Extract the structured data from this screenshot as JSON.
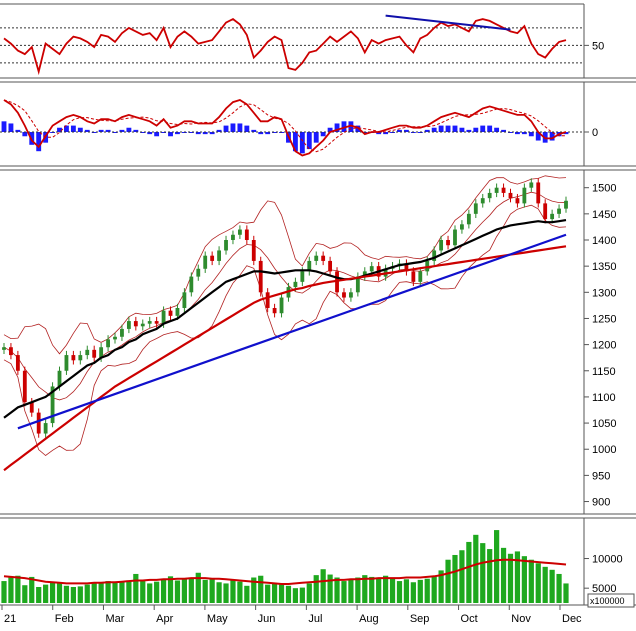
{
  "chart_data": [
    {
      "type": "line",
      "panel": "rsi",
      "y_ticks": [
        50
      ],
      "ylim": [
        15,
        95
      ],
      "reference_lines": [
        30,
        50,
        70
      ],
      "series": [
        {
          "values": [
            58,
            52,
            44,
            40,
            48,
            20,
            52,
            46,
            40,
            52,
            60,
            58,
            54,
            48,
            62,
            60,
            54,
            64,
            70,
            66,
            62,
            64,
            56,
            70,
            48,
            60,
            66,
            60,
            52,
            54,
            56,
            66,
            76,
            80,
            74,
            62,
            36,
            44,
            54,
            60,
            56,
            24,
            22,
            30,
            42,
            44,
            52,
            60,
            54,
            60,
            66,
            58,
            42,
            56,
            52,
            56,
            58,
            60,
            50,
            42,
            58,
            62,
            70,
            76,
            72,
            74,
            70,
            66,
            78,
            80,
            78,
            74,
            70,
            66,
            64,
            72,
            52,
            40,
            36,
            46,
            54,
            56
          ],
          "color": "#cc0000"
        }
      ],
      "trendline": {
        "x": [
          55,
          73
        ],
        "y": [
          84,
          68
        ],
        "color": "#1010aa"
      }
    },
    {
      "type": "line",
      "panel": "macd",
      "y_ticks": [
        0
      ],
      "ylim": [
        -30,
        45
      ],
      "series": [
        {
          "values": [
            30,
            26,
            18,
            6,
            -8,
            -14,
            -4,
            6,
            10,
            14,
            16,
            14,
            10,
            8,
            12,
            12,
            10,
            14,
            16,
            14,
            12,
            10,
            6,
            12,
            4,
            6,
            10,
            10,
            8,
            8,
            8,
            14,
            22,
            28,
            30,
            26,
            18,
            10,
            10,
            14,
            12,
            -4,
            -18,
            -22,
            -20,
            -14,
            -8,
            0,
            2,
            4,
            6,
            4,
            -2,
            0,
            0,
            2,
            4,
            6,
            6,
            4,
            4,
            6,
            10,
            14,
            16,
            18,
            16,
            14,
            18,
            22,
            24,
            22,
            20,
            18,
            16,
            16,
            10,
            0,
            -6,
            -6,
            -2,
            0
          ],
          "color": "#cc0000"
        }
      ],
      "histogram": [
        10,
        8,
        2,
        -4,
        -12,
        -18,
        -10,
        0,
        4,
        6,
        6,
        4,
        2,
        0,
        2,
        2,
        0,
        2,
        4,
        2,
        0,
        -2,
        -4,
        0,
        -4,
        -2,
        0,
        0,
        -2,
        -2,
        -2,
        2,
        6,
        8,
        8,
        6,
        2,
        -2,
        -2,
        0,
        0,
        -10,
        -18,
        -20,
        -16,
        -10,
        -4,
        4,
        8,
        10,
        10,
        6,
        0,
        0,
        -2,
        -2,
        0,
        2,
        2,
        0,
        0,
        2,
        4,
        6,
        6,
        6,
        4,
        2,
        4,
        6,
        6,
        4,
        2,
        0,
        -2,
        -2,
        -4,
        -8,
        -10,
        -8,
        -4,
        -2
      ],
      "histogram_color": "#1a1aff"
    },
    {
      "type": "line",
      "panel": "price",
      "ylim": [
        880,
        1530
      ],
      "y_ticks": [
        900,
        950,
        1000,
        1050,
        1100,
        1150,
        1200,
        1250,
        1300,
        1350,
        1400,
        1450,
        1500
      ],
      "x_tick_labels": [
        "21",
        "Feb",
        "Mar",
        "Apr",
        "May",
        "Jun",
        "Jul",
        "Aug",
        "Sep",
        "Oct",
        "Nov",
        "Dec"
      ],
      "series": [
        {
          "values": [
            1195,
            1180,
            1150,
            1090,
            1070,
            1030,
            1050,
            1120,
            1150,
            1180,
            1170,
            1180,
            1190,
            1175,
            1195,
            1210,
            1215,
            1230,
            1245,
            1235,
            1240,
            1245,
            1240,
            1265,
            1255,
            1270,
            1300,
            1330,
            1345,
            1370,
            1360,
            1380,
            1400,
            1410,
            1420,
            1400,
            1360,
            1300,
            1270,
            1260,
            1290,
            1310,
            1320,
            1340,
            1360,
            1370,
            1360,
            1340,
            1300,
            1290,
            1300,
            1330,
            1340,
            1350,
            1330,
            1345,
            1350,
            1355,
            1340,
            1320,
            1340,
            1360,
            1380,
            1400,
            1390,
            1420,
            1430,
            1450,
            1470,
            1480,
            1490,
            1500,
            1490,
            1480,
            1470,
            1500,
            1510,
            1470,
            1440,
            1450,
            1460,
            1475
          ],
          "color": "#2e8b2e",
          "role": "price"
        },
        {
          "values": [
            1060,
            1070,
            1080,
            1085,
            1090,
            1095,
            1100,
            1110,
            1120,
            1130,
            1140,
            1150,
            1160,
            1165,
            1175,
            1180,
            1190,
            1195,
            1205,
            1210,
            1220,
            1225,
            1230,
            1240,
            1245,
            1250,
            1260,
            1270,
            1280,
            1290,
            1300,
            1310,
            1320,
            1325,
            1330,
            1335,
            1340,
            1340,
            1338,
            1336,
            1338,
            1340,
            1342,
            1342,
            1342,
            1340,
            1336,
            1332,
            1328,
            1325,
            1325,
            1328,
            1332,
            1336,
            1340,
            1344,
            1348,
            1352,
            1354,
            1356,
            1358,
            1362,
            1366,
            1372,
            1378,
            1384,
            1390,
            1396,
            1402,
            1408,
            1414,
            1420,
            1424,
            1428,
            1430,
            1432,
            1434,
            1436,
            1434,
            1434,
            1436,
            1438
          ],
          "color": "#000000",
          "role": "ma-short"
        },
        {
          "values": [
            960,
            970,
            980,
            990,
            1000,
            1010,
            1020,
            1030,
            1040,
            1050,
            1060,
            1070,
            1080,
            1090,
            1100,
            1110,
            1120,
            1128,
            1136,
            1144,
            1152,
            1160,
            1168,
            1176,
            1184,
            1192,
            1200,
            1208,
            1216,
            1224,
            1232,
            1240,
            1248,
            1256,
            1264,
            1272,
            1280,
            1286,
            1290,
            1294,
            1298,
            1302,
            1306,
            1308,
            1312,
            1315,
            1318,
            1320,
            1322,
            1324,
            1326,
            1328,
            1330,
            1332,
            1334,
            1336,
            1338,
            1340,
            1342,
            1344,
            1346,
            1348,
            1350,
            1352,
            1354,
            1356,
            1358,
            1360,
            1362,
            1364,
            1366,
            1368,
            1370,
            1372,
            1374,
            1376,
            1378,
            1380,
            1382,
            1384,
            1386,
            1388
          ],
          "color": "#cc0000",
          "role": "ma-long"
        }
      ],
      "trendline": {
        "x": [
          2,
          81
        ],
        "y": [
          1040,
          1410
        ],
        "color": "#1010cc"
      }
    },
    {
      "type": "bar",
      "panel": "volume",
      "ylim": [
        2500,
        16500
      ],
      "y_ticks": [
        5000,
        10000
      ],
      "multiplier_label": "x100000",
      "values": [
        6200,
        6800,
        7100,
        5500,
        6900,
        5200,
        5600,
        6100,
        5800,
        5400,
        5200,
        5300,
        5600,
        6000,
        5800,
        6200,
        5900,
        6100,
        6300,
        7400,
        6200,
        5800,
        6100,
        6500,
        7000,
        6300,
        6600,
        6800,
        7600,
        6400,
        6500,
        6000,
        5800,
        6300,
        6100,
        5400,
        6800,
        7100,
        5600,
        5800,
        5600,
        5400,
        5000,
        5100,
        5800,
        7200,
        8200,
        7300,
        6800,
        6200,
        6400,
        6800,
        7200,
        6900,
        6600,
        7100,
        6800,
        6200,
        6500,
        6000,
        6400,
        6600,
        7000,
        8000,
        9800,
        10600,
        11400,
        12800,
        14000,
        12600,
        11600,
        14800,
        11800,
        10800,
        11200,
        10400,
        9800,
        9200,
        8600,
        8100,
        7400,
        5800
      ],
      "ma_series": [
        7000,
        6900,
        6800,
        6700,
        6500,
        6300,
        6100,
        6000,
        5900,
        5800,
        5800,
        5800,
        5800,
        5900,
        5900,
        6000,
        6000,
        6100,
        6200,
        6300,
        6300,
        6400,
        6400,
        6500,
        6500,
        6600,
        6600,
        6700,
        6700,
        6700,
        6600,
        6600,
        6500,
        6400,
        6300,
        6200,
        6100,
        6000,
        5900,
        5800,
        5700,
        5700,
        5800,
        5900,
        6000,
        6100,
        6200,
        6300,
        6400,
        6400,
        6500,
        6500,
        6600,
        6600,
        6700,
        6700,
        6700,
        6700,
        6800,
        6800,
        6800,
        6900,
        7000,
        7200,
        7500,
        7800,
        8200,
        8600,
        9000,
        9300,
        9500,
        9700,
        9800,
        9800,
        9700,
        9600,
        9500,
        9400,
        9300,
        9200,
        9100,
        9000
      ],
      "bar_color": "#1ea81e",
      "ma_color": "#cc0000"
    }
  ]
}
